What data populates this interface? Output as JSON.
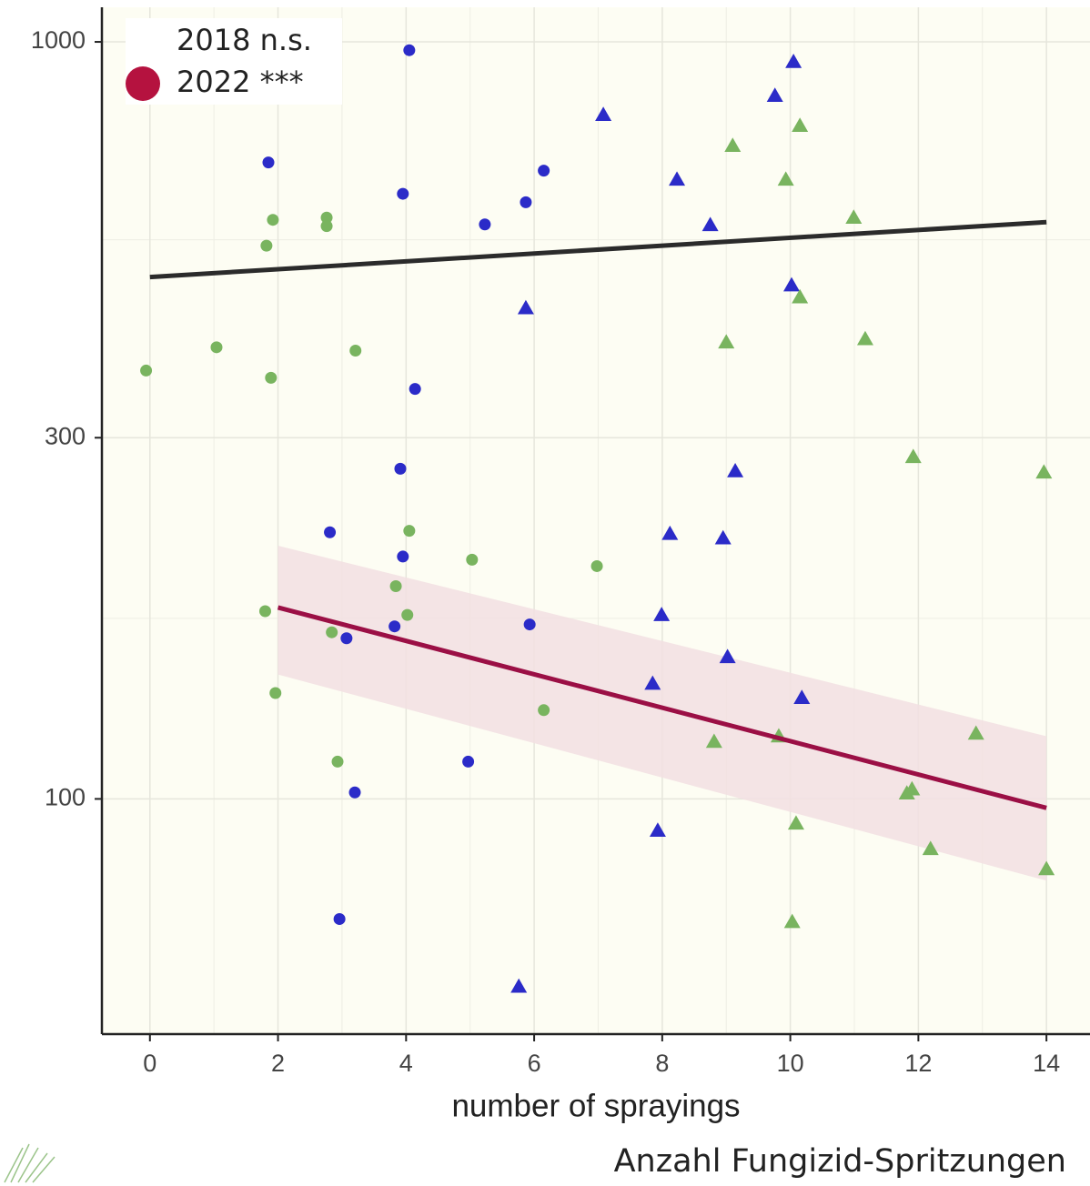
{
  "chart_data": {
    "type": "scatter",
    "xlabel": "number of sprayings",
    "caption": "Anzahl Fungizid-Spritzungen",
    "xlim": [
      -0.75,
      14.68
    ],
    "ylim": [
      48.9,
      1111
    ],
    "xticks": [
      0,
      2,
      4,
      6,
      8,
      10,
      12,
      14
    ],
    "yticks": [
      100,
      300,
      1000
    ],
    "log_y": true,
    "grid": true,
    "background": "#fdfdf3",
    "legend": [
      {
        "label": "2018 n.s."
      },
      {
        "label": "2022 ***",
        "color": "#b5123f"
      }
    ],
    "series": [
      {
        "color": "#2b2bc8",
        "marker": "circle",
        "x": [
          4.05,
          1.85,
          3.95,
          6.15,
          5.87,
          5.23,
          4.14,
          3.91,
          2.81,
          3.95,
          3.82,
          3.07,
          5.93,
          4.97,
          3.2,
          2.96
        ],
        "y": [
          975,
          693,
          630,
          676,
          614,
          574,
          348,
          273,
          225,
          209,
          169,
          163,
          170,
          112,
          102,
          69.4
        ]
      },
      {
        "color": "#79b45f",
        "marker": "circle",
        "x": [
          -0.06,
          1.04,
          1.92,
          1.82,
          2.76,
          2.76,
          3.21,
          1.89,
          4.05,
          5.03,
          6.98,
          3.84,
          4.02,
          1.8,
          2.84,
          1.96,
          6.15,
          2.93
        ],
        "y": [
          368,
          395,
          582,
          538,
          586,
          571,
          391,
          360,
          226,
          207,
          203,
          191,
          175,
          177,
          166,
          138,
          131,
          112
        ]
      },
      {
        "color": "#2b2bc8",
        "marker": "triangle",
        "x": [
          10.05,
          9.76,
          7.08,
          8.23,
          8.75,
          10.02,
          5.87,
          9.14,
          8.12,
          8.95,
          7.99,
          9.02,
          7.85,
          10.18,
          7.93,
          5.76
        ],
        "y": [
          941,
          849,
          801,
          658,
          573,
          477,
          445,
          271,
          224,
          221,
          175,
          154,
          142,
          136,
          90.8,
          56.5
        ]
      },
      {
        "color": "#79b45f",
        "marker": "triangle",
        "x": [
          10.15,
          9.1,
          9.93,
          10.99,
          10.15,
          9.0,
          11.17,
          11.92,
          13.96,
          9.82,
          8.81,
          12.9,
          11.9,
          11.82,
          10.09,
          12.19,
          14.0,
          10.03
        ],
        "y": [
          775,
          729,
          658,
          586,
          460,
          401,
          405,
          283,
          270,
          121,
          119,
          122,
          103,
          101.7,
          92.8,
          85.9,
          80.8,
          68.8
        ]
      }
    ],
    "lines": [
      {
        "color": "#2b2b2b",
        "x": [
          0,
          14
        ],
        "y": [
          489,
          578
        ]
      },
      {
        "color": "#9b0f45",
        "x": [
          2,
          14
        ],
        "y": [
          179,
          97.3
        ],
        "band_lower": [
          146,
          78
        ],
        "band_upper": [
          216,
          121
        ],
        "band_color": "#f2dfe2"
      }
    ]
  }
}
